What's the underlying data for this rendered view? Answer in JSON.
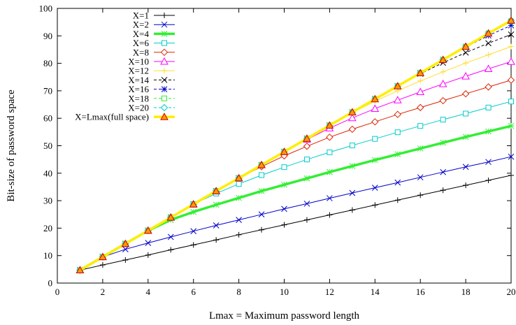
{
  "chart_data": {
    "type": "line",
    "title": "",
    "xlabel": "Lmax = Maximum password length",
    "ylabel": "Bit-size of password space",
    "xlim": [
      0,
      20
    ],
    "ylim": [
      0,
      100
    ],
    "xticks": [
      0,
      2,
      4,
      6,
      8,
      10,
      12,
      14,
      16,
      18,
      20
    ],
    "yticks": [
      0,
      10,
      20,
      30,
      40,
      50,
      60,
      70,
      80,
      90,
      100
    ],
    "grid": false,
    "legend_position": "top-left",
    "series": [
      {
        "name": "X=1",
        "color": "#000000",
        "marker": "plus",
        "dashed": false,
        "x": [
          1,
          2,
          3,
          4,
          5,
          6,
          7,
          8,
          9,
          10,
          11,
          12,
          13,
          14,
          15,
          16,
          17,
          18,
          19,
          20
        ],
        "values": [
          4.7,
          6.6,
          8.4,
          10.2,
          12.1,
          13.9,
          15.7,
          17.6,
          19.4,
          21.2,
          23.0,
          24.8,
          26.6,
          28.4,
          30.2,
          32.0,
          33.8,
          35.6,
          37.4,
          39.2
        ]
      },
      {
        "name": "X=2",
        "color": "#0000cc",
        "marker": "x",
        "dashed": false,
        "x": [
          1,
          2,
          3,
          4,
          5,
          6,
          7,
          8,
          9,
          10,
          11,
          12,
          13,
          14,
          15,
          16,
          17,
          18,
          19,
          20
        ],
        "values": [
          4.7,
          9.5,
          12.3,
          14.6,
          16.8,
          18.9,
          21.0,
          23.0,
          25.0,
          27.0,
          28.9,
          30.9,
          32.8,
          34.7,
          36.6,
          38.5,
          40.4,
          42.3,
          44.1,
          46.0
        ]
      },
      {
        "name": "X=4",
        "color": "#33ee33",
        "marker": "asterisk",
        "dashed": false,
        "thick": true,
        "x": [
          1,
          2,
          3,
          4,
          5,
          6,
          7,
          8,
          9,
          10,
          11,
          12,
          13,
          14,
          15,
          16,
          17,
          18,
          19,
          20
        ],
        "values": [
          4.7,
          9.5,
          14.3,
          19.1,
          23.0,
          25.9,
          28.5,
          31.0,
          33.5,
          35.8,
          38.1,
          40.4,
          42.6,
          44.8,
          46.9,
          49.0,
          51.1,
          53.2,
          55.2,
          57.2
        ]
      },
      {
        "name": "X=6",
        "color": "#00cccc",
        "marker": "square",
        "dashed": false,
        "x": [
          1,
          2,
          3,
          4,
          5,
          6,
          7,
          8,
          9,
          10,
          11,
          12,
          13,
          14,
          15,
          16,
          17,
          18,
          19,
          20
        ],
        "values": [
          4.7,
          9.5,
          14.3,
          19.1,
          23.9,
          28.7,
          32.6,
          36.1,
          39.3,
          42.2,
          45.0,
          47.6,
          50.1,
          52.5,
          54.9,
          57.2,
          59.5,
          61.7,
          63.9,
          66.1
        ]
      },
      {
        "name": "X=8",
        "color": "#dd2200",
        "marker": "diamond",
        "dashed": false,
        "x": [
          1,
          2,
          3,
          4,
          5,
          6,
          7,
          8,
          9,
          10,
          11,
          12,
          13,
          14,
          15,
          16,
          17,
          18,
          19,
          20
        ],
        "values": [
          4.7,
          9.5,
          14.3,
          19.1,
          23.9,
          28.7,
          33.5,
          38.2,
          42.4,
          46.3,
          49.8,
          53.1,
          56.0,
          58.7,
          61.4,
          63.9,
          66.4,
          68.9,
          71.4,
          73.9
        ]
      },
      {
        "name": "X=10",
        "color": "#ff00ff",
        "marker": "triangle",
        "dashed": false,
        "x": [
          1,
          2,
          3,
          4,
          5,
          6,
          7,
          8,
          9,
          10,
          11,
          12,
          13,
          14,
          15,
          16,
          17,
          18,
          19,
          20
        ],
        "values": [
          4.7,
          9.5,
          14.3,
          19.1,
          23.9,
          28.7,
          33.5,
          38.2,
          43.0,
          47.8,
          52.3,
          56.4,
          60.1,
          63.5,
          66.6,
          69.6,
          72.5,
          75.3,
          78.0,
          80.6
        ]
      },
      {
        "name": "X=12",
        "color": "#ffdd33",
        "marker": "plus",
        "dashed": false,
        "x": [
          1,
          2,
          3,
          4,
          5,
          6,
          7,
          8,
          9,
          10,
          11,
          12,
          13,
          14,
          15,
          16,
          17,
          18,
          19,
          20
        ],
        "values": [
          4.7,
          9.5,
          14.3,
          19.1,
          23.9,
          28.7,
          33.5,
          38.2,
          43.0,
          47.8,
          52.6,
          57.4,
          62.0,
          66.2,
          70.0,
          73.6,
          76.9,
          80.1,
          83.1,
          86.1
        ]
      },
      {
        "name": "X=14",
        "color": "#000000",
        "marker": "x",
        "dashed": true,
        "x": [
          1,
          2,
          3,
          4,
          5,
          6,
          7,
          8,
          9,
          10,
          11,
          12,
          13,
          14,
          15,
          16,
          17,
          18,
          19,
          20
        ],
        "values": [
          4.7,
          9.5,
          14.3,
          19.1,
          23.9,
          28.7,
          33.5,
          38.2,
          43.0,
          47.8,
          52.6,
          57.4,
          62.2,
          67.0,
          71.7,
          76.2,
          80.2,
          83.9,
          87.3,
          90.5
        ]
      },
      {
        "name": "X=16",
        "color": "#0000cc",
        "marker": "asterisk",
        "dashed": true,
        "x": [
          1,
          2,
          3,
          4,
          5,
          6,
          7,
          8,
          9,
          10,
          11,
          12,
          13,
          14,
          15,
          16,
          17,
          18,
          19,
          20
        ],
        "values": [
          4.7,
          9.5,
          14.3,
          19.1,
          23.9,
          28.7,
          33.5,
          38.2,
          43.0,
          47.8,
          52.6,
          57.4,
          62.2,
          67.0,
          71.7,
          76.5,
          81.3,
          85.9,
          90.1,
          93.8
        ]
      },
      {
        "name": "X=18",
        "color": "#33ee33",
        "marker": "square",
        "dashed": true,
        "x": [
          1,
          2,
          3,
          4,
          5,
          6,
          7,
          8,
          9,
          10,
          11,
          12,
          13,
          14,
          15,
          16,
          17,
          18,
          19,
          20
        ],
        "values": [
          4.7,
          9.5,
          14.3,
          19.1,
          23.9,
          28.7,
          33.5,
          38.2,
          43.0,
          47.8,
          52.6,
          57.4,
          62.2,
          67.0,
          71.7,
          76.5,
          81.3,
          86.1,
          90.9,
          95.3
        ]
      },
      {
        "name": "X=20",
        "color": "#00cccc",
        "marker": "diamond",
        "dashed": true,
        "x": [
          1,
          2,
          3,
          4,
          5,
          6,
          7,
          8,
          9,
          10,
          11,
          12,
          13,
          14,
          15,
          16,
          17,
          18,
          19,
          20
        ],
        "values": [
          4.7,
          9.5,
          14.3,
          19.1,
          23.9,
          28.7,
          33.5,
          38.2,
          43.0,
          47.8,
          52.6,
          57.4,
          62.2,
          67.0,
          71.7,
          76.5,
          81.3,
          86.1,
          90.9,
          95.6
        ]
      },
      {
        "name": "X=Lmax(full space)",
        "color": "#ffee00",
        "marker_fill": "#ff9900",
        "marker_stroke": "#cc0000",
        "marker": "triangle",
        "dashed": false,
        "thick": true,
        "x": [
          1,
          2,
          3,
          4,
          5,
          6,
          7,
          8,
          9,
          10,
          11,
          12,
          13,
          14,
          15,
          16,
          17,
          18,
          19,
          20
        ],
        "values": [
          4.7,
          9.5,
          14.3,
          19.1,
          23.9,
          28.7,
          33.5,
          38.2,
          43.0,
          47.8,
          52.6,
          57.4,
          62.2,
          67.0,
          71.7,
          76.5,
          81.3,
          86.1,
          90.9,
          95.6
        ]
      }
    ]
  }
}
